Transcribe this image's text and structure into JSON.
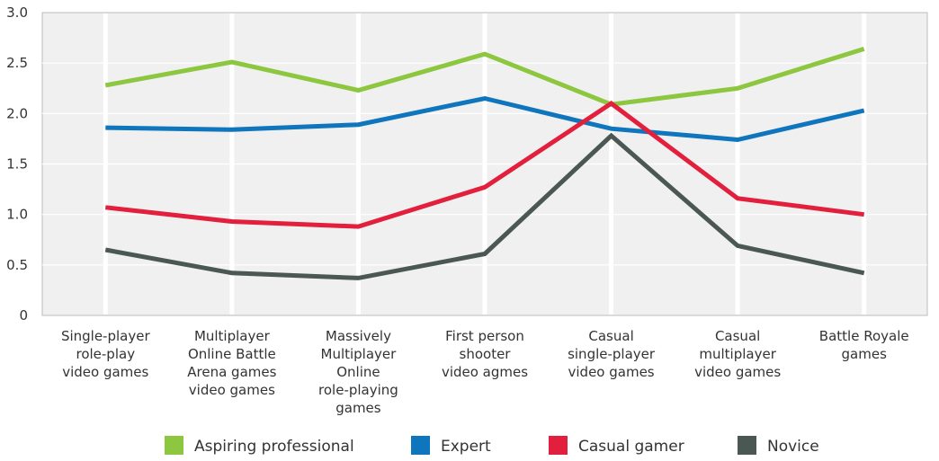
{
  "chart_data": {
    "type": "line",
    "title": "",
    "xlabel": "",
    "ylabel": "",
    "ylim": [
      0,
      3.0
    ],
    "yticks": [
      "0",
      "0.5",
      "1.0",
      "1.5",
      "2.0",
      "2.5",
      "3.0"
    ],
    "ytick_values": [
      0,
      0.5,
      1.0,
      1.5,
      2.0,
      2.5,
      3.0
    ],
    "grid": true,
    "legend_position": "bottom",
    "categories": [
      [
        "Single-player",
        "role-play",
        "video games"
      ],
      [
        "Multiplayer",
        "Online Battle",
        "Arena games",
        "video games"
      ],
      [
        "Massively",
        "Multiplayer",
        "Online",
        "role-playing",
        "games"
      ],
      [
        "First person",
        "shooter",
        "video agmes"
      ],
      [
        "Casual",
        "single-player",
        "video games"
      ],
      [
        "Casual",
        "multiplayer",
        "video games"
      ],
      [
        "Battle Royale",
        "games"
      ]
    ],
    "series": [
      {
        "name": "Aspiring professional",
        "color": "#8dc63f",
        "values": [
          2.28,
          2.51,
          2.23,
          2.59,
          2.09,
          2.25,
          2.64
        ]
      },
      {
        "name": "Expert",
        "color": "#0f75bc",
        "values": [
          1.86,
          1.84,
          1.89,
          2.15,
          1.85,
          1.74,
          2.03
        ]
      },
      {
        "name": "Casual gamer",
        "color": "#e2203d",
        "values": [
          1.07,
          0.93,
          0.88,
          1.27,
          2.1,
          1.16,
          1.0
        ]
      },
      {
        "name": "Novice",
        "color": "#4a5753",
        "values": [
          0.65,
          0.42,
          0.37,
          0.61,
          1.78,
          0.69,
          0.42
        ]
      }
    ]
  }
}
